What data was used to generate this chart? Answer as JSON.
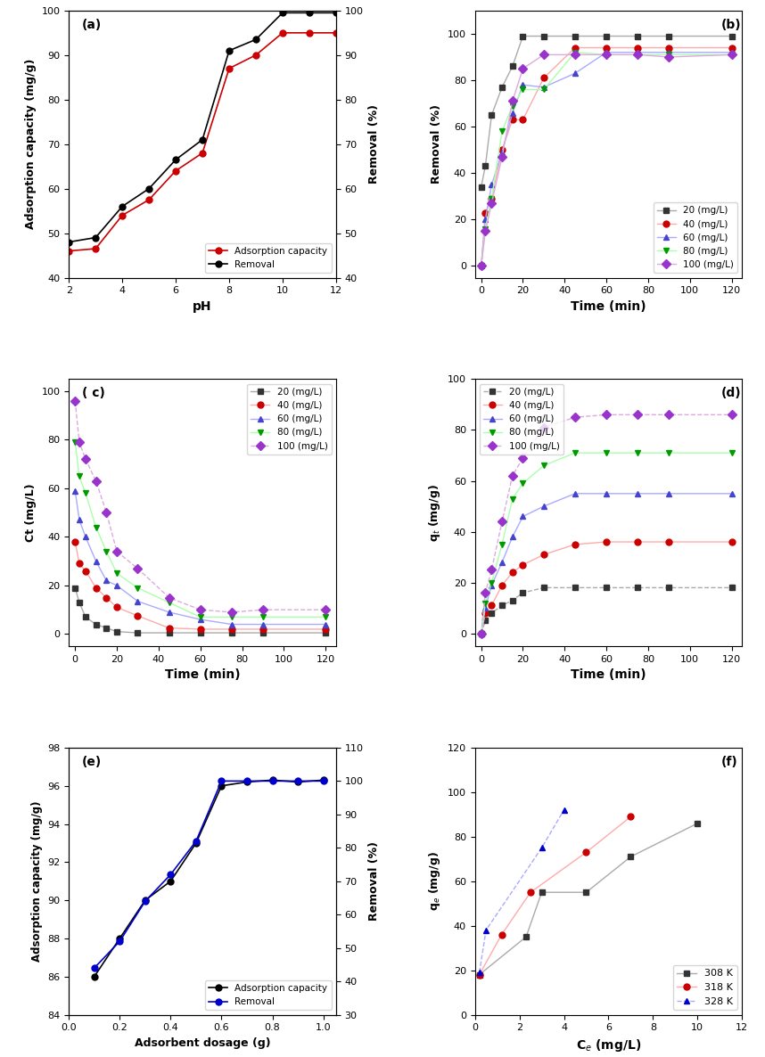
{
  "panel_a": {
    "label": "(a)",
    "ph": [
      2,
      3,
      4,
      5,
      6,
      7,
      8,
      9,
      10,
      11,
      12
    ],
    "adsorption_capacity": [
      46,
      46.5,
      54,
      57.5,
      64,
      68,
      87,
      90,
      95,
      95,
      95
    ],
    "removal": [
      48,
      49,
      56,
      60,
      66.5,
      71,
      91,
      93.5,
      99.5,
      99.5,
      99.5
    ],
    "ylabel_left": "Adsorption capacity (mg/g)",
    "ylabel_right": "Removal (%)",
    "xlabel": "pH",
    "ylim_left": [
      40,
      100
    ],
    "ylim_right": [
      40,
      100
    ],
    "yticks": [
      40,
      50,
      60,
      70,
      80,
      90,
      100
    ],
    "legend_adsorption": "Adsorption capacity",
    "legend_removal": "Removal",
    "color_adsorption": "#cc0000",
    "color_removal": "#000000"
  },
  "panel_b": {
    "label": "(b)",
    "time": [
      0,
      2,
      5,
      10,
      15,
      20,
      30,
      45,
      60,
      75,
      90,
      120
    ],
    "removal_20": [
      34,
      43,
      65,
      77,
      86,
      99,
      99,
      99,
      99,
      99,
      99,
      99
    ],
    "removal_40": [
      0,
      23,
      29,
      50,
      63,
      63,
      81,
      94,
      94,
      94,
      94,
      94
    ],
    "removal_60": [
      0,
      20,
      35,
      49,
      66,
      78,
      77,
      83,
      92,
      92,
      92,
      92
    ],
    "removal_80": [
      0,
      16,
      29,
      58,
      69,
      76,
      76,
      92,
      91,
      91,
      91,
      91
    ],
    "removal_100": [
      0,
      15,
      27,
      47,
      71,
      85,
      91,
      91,
      91,
      91,
      90,
      91
    ],
    "ylabel": "Removal (%)",
    "xlabel": "Time (min)",
    "ylim": [
      -5,
      110
    ],
    "yticks": [
      0,
      20,
      40,
      60,
      80,
      100
    ],
    "labels": [
      "20 (mg/L)",
      "40 (mg/L)",
      "60 (mg/L)",
      "80 (mg/L)",
      "100 (mg/L)"
    ],
    "colors": [
      "#333333",
      "#cc0000",
      "#4444cc",
      "#009900",
      "#9933cc"
    ],
    "line_colors": [
      "#aaaaaa",
      "#ffaaaa",
      "#aaaaff",
      "#aaffaa",
      "#ddaadd"
    ],
    "markers": [
      "s",
      "o",
      "^",
      "v",
      "D"
    ],
    "linestyles": [
      "-",
      "-",
      "-",
      "-",
      "-"
    ]
  },
  "panel_c": {
    "label": "( c)",
    "time": [
      0,
      2,
      5,
      10,
      15,
      20,
      30,
      45,
      60,
      75,
      90,
      120
    ],
    "ct_20": [
      19,
      13,
      7,
      4,
      2.5,
      1,
      0.5,
      0.5,
      0.5,
      0.5,
      0.5,
      0.5
    ],
    "ct_40": [
      38,
      29,
      26,
      19,
      15,
      11,
      7.5,
      2.5,
      2,
      2,
      2,
      2
    ],
    "ct_60": [
      59,
      47,
      40,
      30,
      22,
      20,
      13.5,
      9,
      6,
      4,
      4,
      4
    ],
    "ct_80": [
      79,
      65,
      58,
      44,
      34,
      25,
      19,
      13,
      7,
      7,
      7,
      7
    ],
    "ct_100": [
      96,
      79,
      72,
      63,
      50,
      34,
      27,
      15,
      10,
      9,
      10,
      10
    ],
    "ylabel": "Ct (mg/L)",
    "xlabel": "Time (min)",
    "ylim": [
      -5,
      105
    ],
    "yticks": [
      0,
      20,
      40,
      60,
      80,
      100
    ],
    "labels": [
      "20 (mg/L)",
      "40 (mg/L)",
      "60 (mg/L)",
      "80 (mg/L)",
      "100 (mg/L)"
    ],
    "colors": [
      "#333333",
      "#cc0000",
      "#4444cc",
      "#009900",
      "#9933cc"
    ],
    "line_colors": [
      "#aaaaaa",
      "#ffaaaa",
      "#aaaaff",
      "#aaffaa",
      "#ddaadd"
    ],
    "markers": [
      "s",
      "o",
      "^",
      "v",
      "D"
    ],
    "linestyles": [
      "-",
      "-",
      "-",
      "-",
      "--"
    ]
  },
  "panel_d": {
    "label": "(d)",
    "time": [
      0,
      2,
      5,
      10,
      15,
      20,
      30,
      45,
      60,
      75,
      90,
      120
    ],
    "qt_20": [
      0,
      5,
      8,
      11,
      13,
      16,
      18,
      18,
      18,
      18,
      18,
      18
    ],
    "qt_40": [
      0,
      8,
      11,
      19,
      24,
      27,
      31,
      35,
      36,
      36,
      36,
      36
    ],
    "qt_60": [
      0,
      10,
      19,
      28,
      38,
      46,
      50,
      55,
      55,
      55,
      55,
      55
    ],
    "qt_80": [
      0,
      12,
      20,
      35,
      53,
      59,
      66,
      71,
      71,
      71,
      71,
      71
    ],
    "qt_100": [
      0,
      16,
      25,
      44,
      62,
      69,
      81,
      85,
      86,
      86,
      86,
      86
    ],
    "ylabel": "q$_t$ (mg/g)",
    "xlabel": "Time (min)",
    "ylim": [
      -5,
      100
    ],
    "yticks": [
      0,
      20,
      40,
      60,
      80,
      100
    ],
    "labels": [
      "20 (mg/L)",
      "40 (mg/L)",
      "60 (mg/L)",
      "80 (mg/L)",
      "100 (mg/L)"
    ],
    "colors": [
      "#333333",
      "#cc0000",
      "#4444cc",
      "#009900",
      "#9933cc"
    ],
    "line_colors": [
      "#aaaaaa",
      "#ffaaaa",
      "#aaaaff",
      "#aaffaa",
      "#ddaadd"
    ],
    "markers": [
      "s",
      "o",
      "^",
      "v",
      "D"
    ],
    "linestyles": [
      "--",
      "-",
      "-",
      "-",
      "--"
    ]
  },
  "panel_e": {
    "label": "(e)",
    "dosage": [
      0.1,
      0.2,
      0.3,
      0.4,
      0.5,
      0.6,
      0.7,
      0.8,
      0.9,
      1.0
    ],
    "adsorption_capacity": [
      86,
      88,
      90,
      91,
      93,
      96,
      96.2,
      96.3,
      96.2,
      96.3
    ],
    "removal": [
      44,
      52,
      64,
      72,
      82,
      100,
      100,
      100,
      100,
      100
    ],
    "ylabel_left": "Adsorption capacity (mg/g)",
    "ylabel_right": "Removal (%)",
    "xlabel": "Adsorbent dosage (g)",
    "ylim_left": [
      84,
      98
    ],
    "ylim_right": [
      30,
      110
    ],
    "yticks_left": [
      84,
      86,
      88,
      90,
      92,
      94,
      96,
      98
    ],
    "yticks_right": [
      30,
      40,
      50,
      60,
      70,
      80,
      90,
      100,
      110
    ],
    "legend_adsorption": "Adsorption capacity",
    "legend_removal": "Removal",
    "color_adsorption": "#000000",
    "color_removal": "#0000cc"
  },
  "panel_f": {
    "label": "(f)",
    "ce_308": [
      0.2,
      2.3,
      3.0,
      5.0,
      7.0,
      10.0
    ],
    "qe_308": [
      18,
      35,
      55,
      55,
      71,
      86
    ],
    "ce_318": [
      0.2,
      1.2,
      2.5,
      5.0,
      7.0
    ],
    "qe_318": [
      18,
      36,
      55,
      73,
      89
    ],
    "ce_328": [
      0.2,
      0.5,
      3.0,
      4.0
    ],
    "qe_328": [
      19,
      38,
      75,
      92
    ],
    "line_color_308": "#aaaaaa",
    "line_color_318": "#ffaaaa",
    "line_color_328": "#aaaaff",
    "ylabel": "q$_e$ (mg/g)",
    "xlabel": "C$_e$ (mg/L)",
    "ylim": [
      0,
      120
    ],
    "xlim": [
      0,
      12
    ],
    "yticks": [
      0,
      20,
      40,
      60,
      80,
      100,
      120
    ],
    "labels": [
      "308 K",
      "318 K",
      "328 K"
    ],
    "colors": [
      "#333333",
      "#cc0000",
      "#0000cc"
    ],
    "markers": [
      "s",
      "o",
      "^"
    ]
  }
}
